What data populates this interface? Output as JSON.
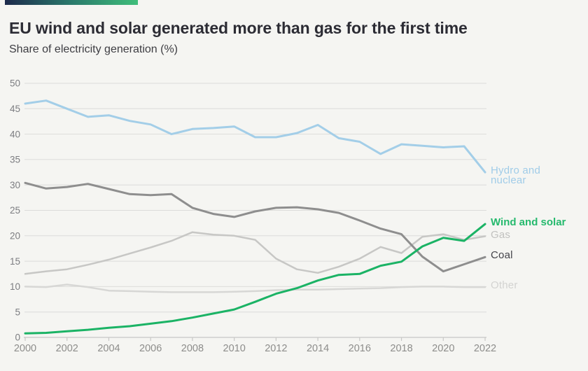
{
  "colors": {
    "background": "#f5f5f2",
    "accent_bar_start": "#1d2a4c",
    "accent_bar_mid": "#2a7a6c",
    "accent_bar_end": "#3fbd7a",
    "title": "#2c2c34",
    "subtitle": "#3d3d42",
    "gridline": "#dcdcda",
    "axis_line": "#c8c8c6",
    "axis_label_y": "#7c7d81",
    "axis_label_x": "#8d8d8b"
  },
  "chart_data": {
    "type": "line",
    "title": "EU wind and solar generated more than gas for the first time",
    "subtitle": "Share of electricity generation (%)",
    "xlabel": "",
    "ylabel": "Share of electricity generation (%)",
    "x": [
      2000,
      2001,
      2002,
      2003,
      2004,
      2005,
      2006,
      2007,
      2008,
      2009,
      2010,
      2011,
      2012,
      2013,
      2014,
      2015,
      2016,
      2017,
      2018,
      2019,
      2020,
      2021,
      2022
    ],
    "x_ticks": [
      2000,
      2002,
      2004,
      2006,
      2008,
      2010,
      2012,
      2014,
      2016,
      2018,
      2020,
      2022
    ],
    "y_ticks": [
      0,
      5,
      10,
      15,
      20,
      25,
      30,
      35,
      40,
      45,
      50
    ],
    "ylim": [
      0,
      50
    ],
    "grid": "horizontal",
    "legend_position": "right-end-labels",
    "series": [
      {
        "name": "Other",
        "slug": "other",
        "label": "Other",
        "color": "#d7d7d5",
        "label_color": "#d3d3d1",
        "width": 2.5,
        "bold_label": false,
        "values": [
          10.0,
          9.9,
          10.4,
          9.9,
          9.2,
          9.1,
          9.0,
          8.9,
          8.9,
          8.9,
          9.0,
          9.1,
          9.3,
          9.4,
          9.4,
          9.5,
          9.6,
          9.7,
          9.9,
          10.0,
          10.0,
          9.9,
          9.9
        ]
      },
      {
        "name": "Gas",
        "slug": "gas",
        "label": "Gas",
        "color": "#c7c7c5",
        "label_color": "#c1c1bf",
        "width": 2.5,
        "bold_label": false,
        "values": [
          12.5,
          13.0,
          13.4,
          14.3,
          15.3,
          16.5,
          17.7,
          19.0,
          20.7,
          20.2,
          20.0,
          19.2,
          15.5,
          13.4,
          12.7,
          13.9,
          15.5,
          17.8,
          16.6,
          19.8,
          20.3,
          19.2,
          19.9
        ]
      },
      {
        "name": "Coal",
        "slug": "coal",
        "label": "Coal",
        "color": "#8e8e8e",
        "label_color": "#434349",
        "width": 3,
        "bold_label": false,
        "values": [
          30.4,
          29.3,
          29.6,
          30.2,
          29.2,
          28.2,
          28.0,
          28.2,
          25.5,
          24.3,
          23.7,
          24.8,
          25.5,
          25.6,
          25.2,
          24.5,
          23.0,
          21.4,
          20.3,
          15.9,
          13.0,
          14.4,
          15.8
        ]
      },
      {
        "name": "Hydro and nuclear",
        "slug": "hydro-nuclear",
        "label": "Hydro and\nnuclear",
        "color": "#a3cee8",
        "label_color": "#a0cce8",
        "width": 3,
        "bold_label": false,
        "values": [
          46.0,
          46.6,
          45.0,
          43.4,
          43.7,
          42.6,
          41.9,
          40.0,
          41.0,
          41.2,
          41.5,
          39.4,
          39.4,
          40.2,
          41.8,
          39.2,
          38.5,
          36.1,
          38.0,
          37.7,
          37.4,
          37.6,
          32.5
        ]
      },
      {
        "name": "Wind and solar",
        "slug": "wind-solar",
        "label": "Wind and solar",
        "color": "#1bb365",
        "label_color": "#25b96d",
        "width": 3,
        "bold_label": true,
        "values": [
          0.8,
          0.9,
          1.2,
          1.5,
          1.9,
          2.2,
          2.7,
          3.2,
          3.9,
          4.7,
          5.5,
          7.0,
          8.6,
          9.7,
          11.2,
          12.3,
          12.5,
          14.1,
          14.9,
          17.9,
          19.6,
          19.0,
          22.3
        ]
      }
    ]
  }
}
